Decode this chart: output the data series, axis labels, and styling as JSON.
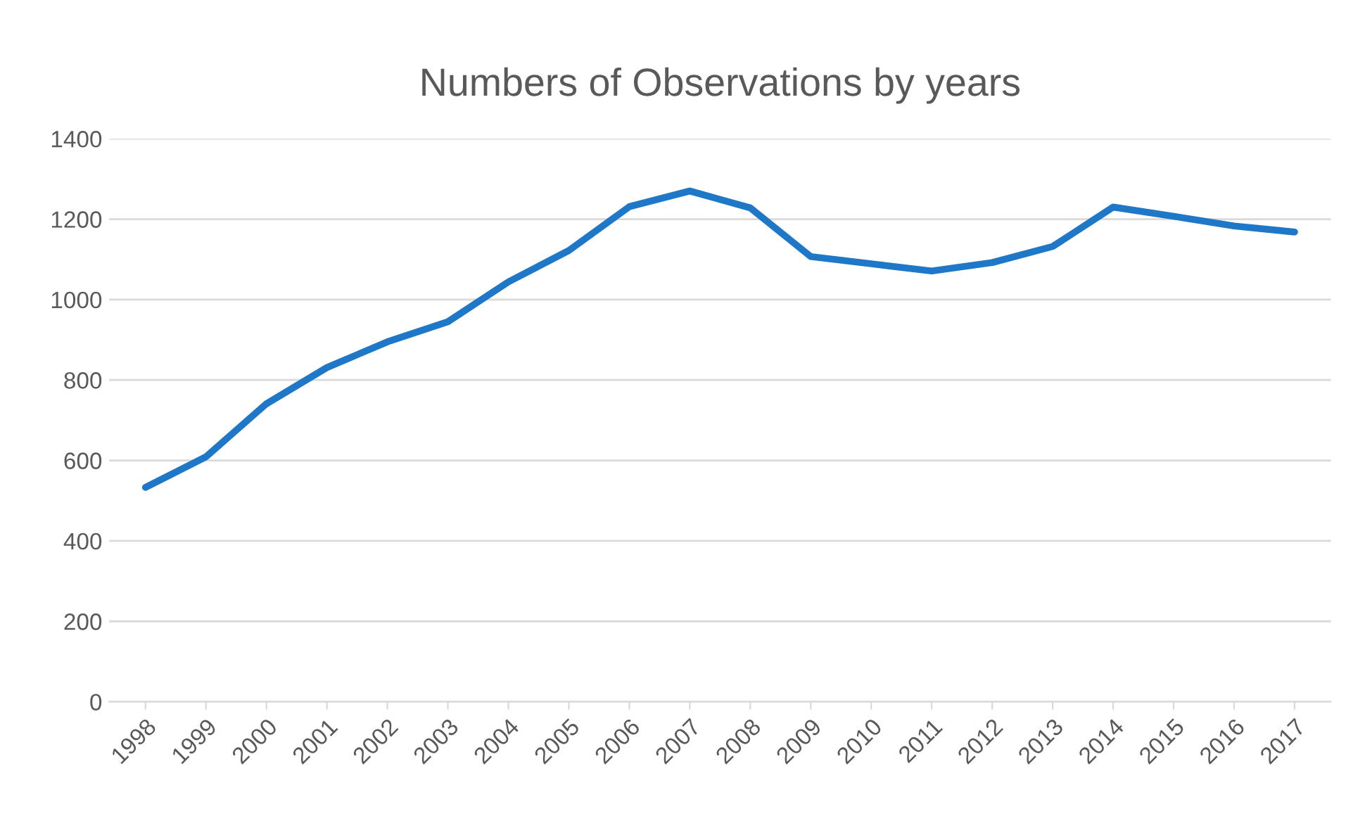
{
  "chart_data": {
    "type": "line",
    "title": "Numbers of Observations by years",
    "categories": [
      "1998",
      "1999",
      "2000",
      "2001",
      "2002",
      "2003",
      "2004",
      "2005",
      "2006",
      "2007",
      "2008",
      "2009",
      "2010",
      "2011",
      "2012",
      "2013",
      "2014",
      "2015",
      "2016",
      "2017"
    ],
    "series": [
      {
        "color": "#1f77c8",
        "values": [
          533,
          609,
          741,
          831,
          895,
          945,
          1044,
          1122,
          1231,
          1270,
          1228,
          1107,
          1089,
          1071,
          1092,
          1132,
          1230,
          1207,
          1183,
          1168
        ]
      }
    ],
    "ylim": [
      0,
      1400
    ],
    "yticks": [
      0,
      200,
      400,
      600,
      800,
      1000,
      1200,
      1400
    ],
    "grid": "y",
    "marker": "none",
    "line_style": "solid"
  }
}
